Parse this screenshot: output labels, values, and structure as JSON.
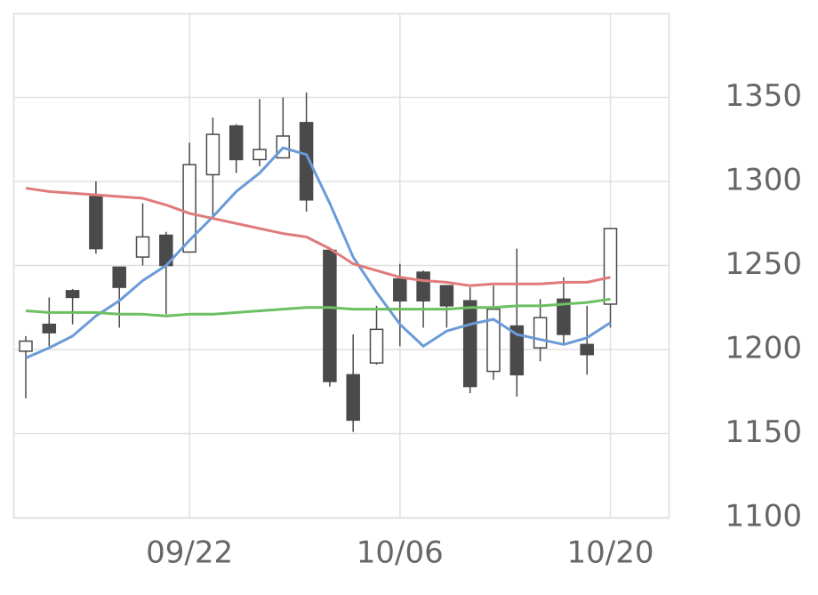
{
  "chart_data": {
    "type": "candlestick",
    "categories": [
      null,
      null,
      null,
      null,
      null,
      null,
      null,
      "09/22",
      null,
      null,
      null,
      null,
      null,
      null,
      null,
      null,
      "10/06",
      null,
      null,
      null,
      null,
      null,
      null,
      null,
      null,
      "10/20"
    ],
    "open": [
      1199,
      1215,
      1235,
      1291,
      1249,
      1255,
      1268,
      1258,
      1304,
      1333,
      1313,
      1314,
      1335,
      1259,
      1185,
      1192,
      1242,
      1246,
      1238,
      1229,
      1187,
      1214,
      1201,
      1230,
      1203,
      1227
    ],
    "high": [
      1208,
      1231,
      1236,
      1300,
      1249,
      1287,
      1270,
      1323,
      1338,
      1334,
      1349,
      1350,
      1353,
      1259,
      1209,
      1226,
      1251,
      1247,
      1238,
      1237,
      1238,
      1260,
      1230,
      1243,
      1226,
      1272
    ],
    "low": [
      1171,
      1202,
      1215,
      1257,
      1213,
      1250,
      1221,
      1258,
      1279,
      1305,
      1309,
      1314,
      1282,
      1178,
      1151,
      1191,
      1202,
      1213,
      1213,
      1174,
      1182,
      1172,
      1193,
      1203,
      1185,
      1213
    ],
    "close": [
      1205,
      1210,
      1231,
      1260,
      1237,
      1267,
      1250,
      1310,
      1328,
      1313,
      1319,
      1327,
      1289,
      1181,
      1158,
      1212,
      1229,
      1229,
      1226,
      1178,
      1224,
      1185,
      1219,
      1209,
      1197,
      1272
    ],
    "up_color": "#ffffff",
    "down_color": "#4a4a4a",
    "edge_color": "#4a4a4a",
    "series": [
      {
        "color": "#6a9bd8",
        "values": [
          1195,
          1201,
          1208,
          1220,
          1229,
          1241,
          1250,
          1265,
          1279,
          1294,
          1305,
          1320,
          1316,
          1287,
          1255,
          1234,
          1215,
          1202,
          1211,
          1215,
          1218,
          1209,
          1206,
          1203,
          1207,
          1216
        ]
      },
      {
        "color": "#e07b7b",
        "values": [
          1296,
          1294,
          1293,
          1292,
          1291,
          1290,
          1286,
          1281,
          1278,
          1275,
          1272,
          1269,
          1267,
          1260,
          1251,
          1247,
          1243,
          1241,
          1240,
          1238,
          1239,
          1239,
          1239,
          1240,
          1240,
          1243
        ]
      },
      {
        "color": "#6cbf62",
        "values": [
          1223,
          1222,
          1222,
          1222,
          1221,
          1221,
          1220,
          1221,
          1221,
          1222,
          1223,
          1224,
          1225,
          1225,
          1224,
          1224,
          1224,
          1224,
          1224,
          1225,
          1225,
          1226,
          1226,
          1227,
          1228,
          1230
        ]
      }
    ],
    "ylim": [
      1100,
      1400
    ],
    "yticks": [
      1100,
      1150,
      1200,
      1250,
      1300,
      1350
    ],
    "grid": true
  }
}
